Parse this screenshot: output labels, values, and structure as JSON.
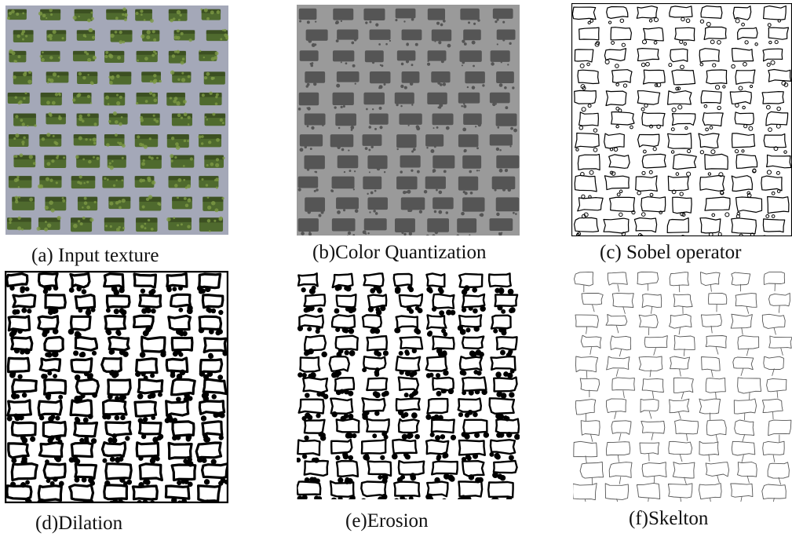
{
  "figure": {
    "panels": [
      {
        "id": "a",
        "caption": "(a) Input texture",
        "icon": "grass-paver-photo",
        "colors": {
          "slab": "#a4a8b8",
          "grass": "#4f6a2e",
          "shadow": "#2d3a1a"
        }
      },
      {
        "id": "b",
        "caption": "(b)Color Quantization",
        "icon": "quantized-grid",
        "colors": {
          "slab": "#9a9a9a",
          "grass": "#555555"
        }
      },
      {
        "id": "c",
        "caption": "(c) Sobel operator",
        "icon": "edge-outline-grid",
        "colors": {
          "line": "#000000",
          "bg": "#ffffff"
        }
      },
      {
        "id": "d",
        "caption": "(d)Dilation",
        "icon": "dilated-edge-grid",
        "colors": {
          "line": "#000000",
          "bg": "#ffffff"
        }
      },
      {
        "id": "e",
        "caption": "(e)Erosion",
        "icon": "eroded-edge-grid",
        "colors": {
          "line": "#000000",
          "bg": "#ffffff"
        }
      },
      {
        "id": "f",
        "caption": "(f)Skelton",
        "icon": "skeleton-grid",
        "colors": {
          "line": "#555555",
          "bg": "#ffffff"
        }
      }
    ]
  }
}
